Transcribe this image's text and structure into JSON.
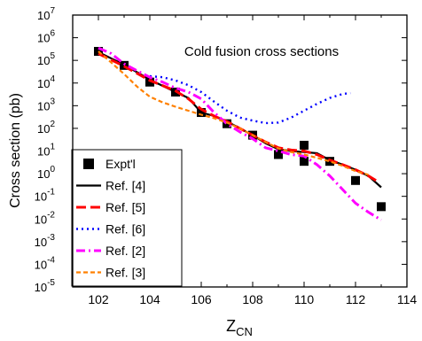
{
  "chart_data": {
    "type": "line",
    "title": "",
    "annotation": "Cold fusion cross sections",
    "xlabel_main": "Z",
    "xlabel_sub": "CN",
    "ylabel": "Cross section (pb)",
    "xlim": [
      101,
      114
    ],
    "ylim_exp": [
      -5,
      7
    ],
    "yscale": "log",
    "xticks": [
      102,
      104,
      106,
      108,
      110,
      112,
      114
    ],
    "ytick_exponents": [
      -5,
      -4,
      -3,
      -2,
      -1,
      0,
      1,
      2,
      3,
      4,
      5,
      6,
      7
    ],
    "ytick_base": "10",
    "legend_position": "bottom-left",
    "grid": false,
    "series": [
      {
        "name": "Expt'l",
        "style": "markers",
        "color": "#000000",
        "points": [
          [
            102,
            250000.0
          ],
          [
            103,
            60000.0
          ],
          [
            104,
            11000.0
          ],
          [
            105,
            4000.0
          ],
          [
            106,
            500.0
          ],
          [
            107,
            160.0
          ],
          [
            108,
            50.0
          ],
          [
            109,
            7
          ],
          [
            110,
            3.5
          ],
          [
            110,
            18.0
          ],
          [
            111,
            3.5
          ],
          [
            112,
            0.5
          ],
          [
            113,
            0.035
          ]
        ]
      },
      {
        "name": "Ref. [4]",
        "style": "solid",
        "color": "#000000",
        "points": [
          [
            102,
            230000.0
          ],
          [
            103,
            65000.0
          ],
          [
            104,
            14000.0
          ],
          [
            105,
            4000.0
          ],
          [
            105.5,
            2200.0
          ],
          [
            106,
            500.0
          ],
          [
            106.5,
            350.0
          ],
          [
            107,
            200.0
          ],
          [
            107.5,
            100.0
          ],
          [
            108,
            50.0
          ],
          [
            108.5,
            22.0
          ],
          [
            109,
            12.0
          ],
          [
            109.5,
            10.0
          ],
          [
            110,
            9
          ],
          [
            110.5,
            8
          ],
          [
            111,
            4
          ],
          [
            111.5,
            2.5
          ],
          [
            112,
            1.5
          ],
          [
            112.5,
            0.8
          ],
          [
            113,
            0.25
          ]
        ]
      },
      {
        "name": "Ref. [5]",
        "style": "dash",
        "color": "#ff0000",
        "points": [
          [
            102,
            200000.0
          ],
          [
            103,
            55000.0
          ],
          [
            104,
            13000.0
          ],
          [
            105,
            4500.0
          ],
          [
            105.5,
            2000.0
          ],
          [
            106,
            700.0
          ],
          [
            106.5,
            350.0
          ],
          [
            107,
            200.0
          ],
          [
            107.5,
            100.0
          ],
          [
            108,
            50.0
          ],
          [
            108.5,
            25.0
          ],
          [
            109,
            14.0
          ],
          [
            109.5,
            11.0
          ],
          [
            110,
            10.0
          ],
          [
            110.5,
            7
          ],
          [
            111,
            4
          ],
          [
            111.5,
            2.5
          ],
          [
            112,
            1.5
          ],
          [
            112.5,
            0.8
          ],
          [
            112.8,
            0.5
          ]
        ]
      },
      {
        "name": "Ref. [6]",
        "style": "dot",
        "color": "#0000ff",
        "points": [
          [
            104,
            20000.0
          ],
          [
            104.5,
            18000.0
          ],
          [
            105,
            13000.0
          ],
          [
            105.5,
            8000.0
          ],
          [
            106,
            4000.0
          ],
          [
            106.5,
            1500.0
          ],
          [
            107,
            600.0
          ],
          [
            107.5,
            300.0
          ],
          [
            108,
            220.0
          ],
          [
            108.5,
            170.0
          ],
          [
            109,
            180.0
          ],
          [
            109.5,
            300.0
          ],
          [
            110,
            600.0
          ],
          [
            110.5,
            1200.0
          ],
          [
            111,
            2200.0
          ],
          [
            111.5,
            3300.0
          ],
          [
            111.8,
            3600.0
          ]
        ]
      },
      {
        "name": "Ref. [2]",
        "style": "dashdot",
        "color": "#ff00ff",
        "points": [
          [
            102,
            350000.0
          ],
          [
            102.5,
            200000.0
          ],
          [
            103,
            70000.0
          ],
          [
            103.5,
            35000.0
          ],
          [
            104,
            18000.0
          ],
          [
            104.5,
            11000.0
          ],
          [
            105,
            6000.0
          ],
          [
            105.5,
            4000.0
          ],
          [
            106,
            2000.0
          ],
          [
            106.5,
            500.0
          ],
          [
            107,
            160.0
          ],
          [
            107.5,
            70.0
          ],
          [
            108,
            35.0
          ],
          [
            108.5,
            14.0
          ],
          [
            109,
            10.0
          ],
          [
            109.5,
            7
          ],
          [
            110,
            6
          ],
          [
            110.5,
            2.5
          ],
          [
            111,
            0.8
          ],
          [
            111.5,
            0.2
          ],
          [
            112,
            0.05
          ],
          [
            112.5,
            0.02
          ],
          [
            113,
            0.009
          ]
        ]
      },
      {
        "name": "Ref. [3]",
        "style": "shortdash",
        "color": "#ff8000",
        "points": [
          [
            102,
            250000.0
          ],
          [
            102.5,
            80000.0
          ],
          [
            103,
            25000.0
          ],
          [
            103.5,
            7000.0
          ],
          [
            104,
            2500.0
          ],
          [
            104.5,
            1400.0
          ],
          [
            105,
            900.0
          ],
          [
            105.5,
            600.0
          ],
          [
            106,
            400.0
          ],
          [
            106.5,
            280.0
          ],
          [
            107,
            180.0
          ],
          [
            107.5,
            100.0
          ],
          [
            108,
            50.0
          ],
          [
            108.5,
            25.0
          ],
          [
            109,
            13.0
          ],
          [
            109.5,
            9
          ],
          [
            110,
            7
          ],
          [
            110.5,
            5
          ],
          [
            111,
            3.5
          ],
          [
            111.5,
            2.2
          ],
          [
            112,
            1.3
          ],
          [
            112.5,
            0.9
          ]
        ]
      }
    ]
  }
}
